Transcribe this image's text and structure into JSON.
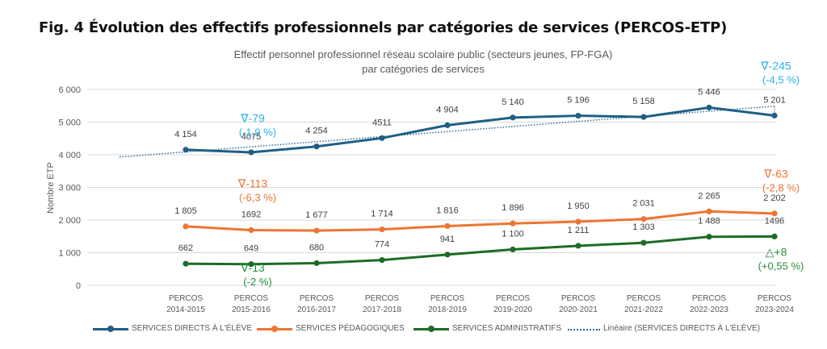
{
  "figure": {
    "title": "Fig. 4 Évolution des effectifs professionnels par catégories de services (PERCOS-ETP)"
  },
  "chart_data": {
    "type": "line",
    "title": "Effectif personnel professionnel réseau scolaire public (secteurs jeunes, FP-FGA)",
    "subtitle": "par catégories de services",
    "xlabel": "",
    "ylabel": "Nombre ETP",
    "ylim": [
      0,
      6000
    ],
    "yticks": [
      0,
      1000,
      2000,
      3000,
      4000,
      5000,
      6000
    ],
    "ytick_labels": [
      "0",
      "1 000",
      "2 000",
      "3 000",
      "4 000",
      "5 000",
      "6 000"
    ],
    "grid": true,
    "legend_position": "bottom",
    "categories": [
      [
        "PERCOS",
        "2014-2015"
      ],
      [
        "PERCOS",
        "2015-2016"
      ],
      [
        "PERCOS",
        "2016-2017"
      ],
      [
        "PERCOS",
        "2017-2018"
      ],
      [
        "PERCOS",
        "2018-2019"
      ],
      [
        "PERCOS",
        "2019-2020"
      ],
      [
        "PERCOS",
        "2020-2021"
      ],
      [
        "PERCOS",
        "2021-2022"
      ],
      [
        "PERCOS",
        "2022-2023"
      ],
      [
        "PERCOS",
        "2023-2024"
      ]
    ],
    "series": [
      {
        "name": "SERVICES DIRECTS À L'ÉLÈVE",
        "color": "#1f5f84",
        "values": [
          4154,
          4075,
          4254,
          4511,
          4904,
          5140,
          5196,
          5158,
          5446,
          5201
        ],
        "labels": [
          "4 154",
          "4075",
          "4 254",
          "4511",
          "4 904",
          "5 140",
          "5 196",
          "5 158",
          "5 446",
          "5 201"
        ]
      },
      {
        "name": "SERVICES PÉDAGOGIQUES",
        "color": "#ed7532",
        "values": [
          1805,
          1692,
          1677,
          1714,
          1816,
          1896,
          1950,
          2031,
          2265,
          2202
        ],
        "labels": [
          "1 805",
          "1692",
          "1 677",
          "1 714",
          "1 816",
          "1 896",
          "1 950",
          "2 031",
          "2 265",
          "2 202"
        ]
      },
      {
        "name": "SERVICES ADMINISTRATIFS",
        "color": "#1e6b28",
        "values": [
          662,
          649,
          680,
          774,
          941,
          1100,
          1211,
          1303,
          1488,
          1496
        ],
        "labels": [
          "662",
          "649",
          "680",
          "774",
          "941",
          "1 100",
          "1 211",
          "1 303",
          "1 488",
          "1496"
        ]
      }
    ],
    "trendline": {
      "name": "Linéaire (SERVICES DIRECTS À L'ÉLÈVE)",
      "color": "#2e6e96",
      "of_series": "SERVICES DIRECTS À L'ÉLÈVE",
      "start_value": 3930,
      "end_value": 5490
    },
    "annotations": [
      {
        "symbol": "∇",
        "text": "-79",
        "sub": "(-1,9 %)",
        "color": "#2bb0e8",
        "category_index": 1,
        "value": 5000
      },
      {
        "symbol": "∇",
        "text": "-245",
        "sub": "(-4,5 %)",
        "color": "#2bb0e8",
        "category_index": 9,
        "value": 6600
      },
      {
        "symbol": "∇",
        "text": "-113",
        "sub": "(-6,3 %)",
        "color": "#ed7532",
        "category_index": 1,
        "value": 3000
      },
      {
        "symbol": "∇",
        "text": "-63",
        "sub": "(-2,8 %)",
        "color": "#ed7532",
        "category_index": 9,
        "value": 3300
      },
      {
        "symbol": "∇",
        "text": "-13",
        "sub": "(-2 %)",
        "color": "#1e8f3a",
        "category_index": 1,
        "value": 420
      },
      {
        "symbol": "△",
        "text": "+8",
        "sub": "(+0,55 %)",
        "color": "#2e8b3e",
        "category_index": 9,
        "value": 900
      }
    ]
  }
}
